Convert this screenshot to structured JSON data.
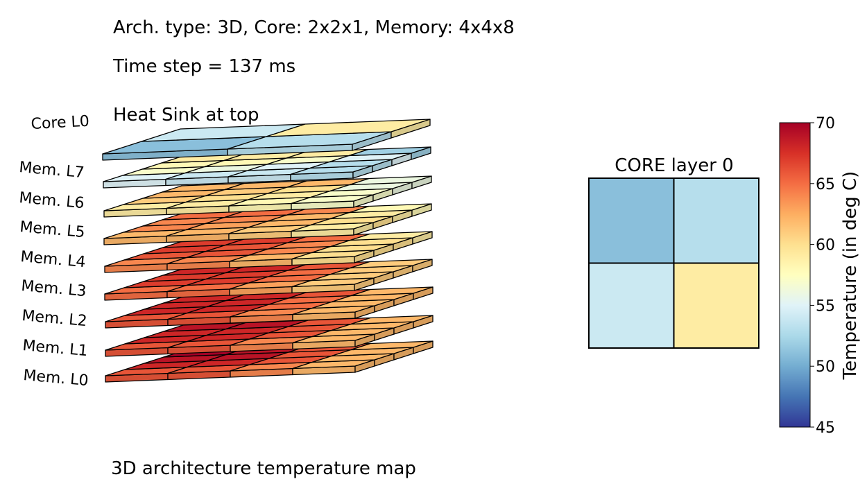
{
  "header": {
    "arch_line": "Arch. type: 3D, Core: 2x2x1, Memory: 4x4x8",
    "time_line": "Time step = 137 ms",
    "sink_line": "Heat Sink at top"
  },
  "footer": {
    "caption": "3D architecture temperature map"
  },
  "layer_labels": [
    "Core  L0",
    "Mem. L7",
    "Mem. L6",
    "Mem. L5",
    "Mem. L4",
    "Mem. L3",
    "Mem. L2",
    "Mem. L1",
    "Mem. L0"
  ],
  "chart_data": [
    {
      "type": "heatmap",
      "title": "",
      "colormap": "RdYlBu_r",
      "value_range": [
        45,
        70
      ],
      "layers": [
        {
          "name": "Core  L0",
          "grid": [
            [
              51,
              53
            ],
            [
              54,
              59
            ]
          ]
        },
        {
          "name": "Mem. L7",
          "grid": [
            [
              55,
              54,
              54,
              53
            ],
            [
              57,
              56,
              55,
              53
            ],
            [
              58,
              58,
              57,
              55
            ],
            [
              59,
              59,
              59,
              52
            ]
          ]
        },
        {
          "name": "Mem. L6",
          "grid": [
            [
              59,
              59,
              58,
              57
            ],
            [
              61,
              60,
              59,
              57
            ],
            [
              62,
              61,
              60,
              56
            ],
            [
              62,
              62,
              62,
              56
            ]
          ]
        },
        {
          "name": "Mem. L5",
          "grid": [
            [
              62,
              62,
              61,
              59
            ],
            [
              64,
              63,
              62,
              60
            ],
            [
              64,
              64,
              62,
              59
            ],
            [
              65,
              65,
              64,
              58
            ]
          ]
        },
        {
          "name": "Mem. L4",
          "grid": [
            [
              64,
              64,
              62,
              60
            ],
            [
              66,
              66,
              64,
              60
            ],
            [
              67,
              66,
              64,
              60
            ],
            [
              67,
              67,
              65,
              59
            ]
          ]
        },
        {
          "name": "Mem. L3",
          "grid": [
            [
              65,
              65,
              63,
              61
            ],
            [
              67,
              67,
              65,
              61
            ],
            [
              67,
              67,
              65,
              61
            ],
            [
              68,
              68,
              66,
              61
            ]
          ]
        },
        {
          "name": "Mem. L2",
          "grid": [
            [
              66,
              66,
              64,
              62
            ],
            [
              68,
              68,
              65,
              62
            ],
            [
              68,
              68,
              65,
              62
            ],
            [
              68,
              68,
              66,
              62
            ]
          ]
        },
        {
          "name": "Mem. L1",
          "grid": [
            [
              66,
              66,
              64,
              62
            ],
            [
              68,
              68,
              66,
              62
            ],
            [
              68,
              68,
              66,
              62
            ],
            [
              69,
              69,
              66,
              62
            ]
          ]
        },
        {
          "name": "Mem. L0",
          "grid": [
            [
              66,
              66,
              64,
              62
            ],
            [
              68,
              68,
              66,
              62
            ],
            [
              69,
              69,
              66,
              62
            ],
            [
              70,
              69,
              66,
              62
            ]
          ]
        }
      ]
    },
    {
      "type": "heatmap",
      "title": "CORE layer 0",
      "values": [
        [
          51,
          53
        ],
        [
          54,
          59
        ]
      ],
      "value_range": [
        45,
        70
      ]
    },
    {
      "type": "colorbar",
      "label": "Temperature (in deg C)",
      "range": [
        45,
        70
      ],
      "ticks": [
        "45",
        "50",
        "55",
        "60",
        "65",
        "70"
      ],
      "colormap": "RdYlBu_r"
    }
  ]
}
